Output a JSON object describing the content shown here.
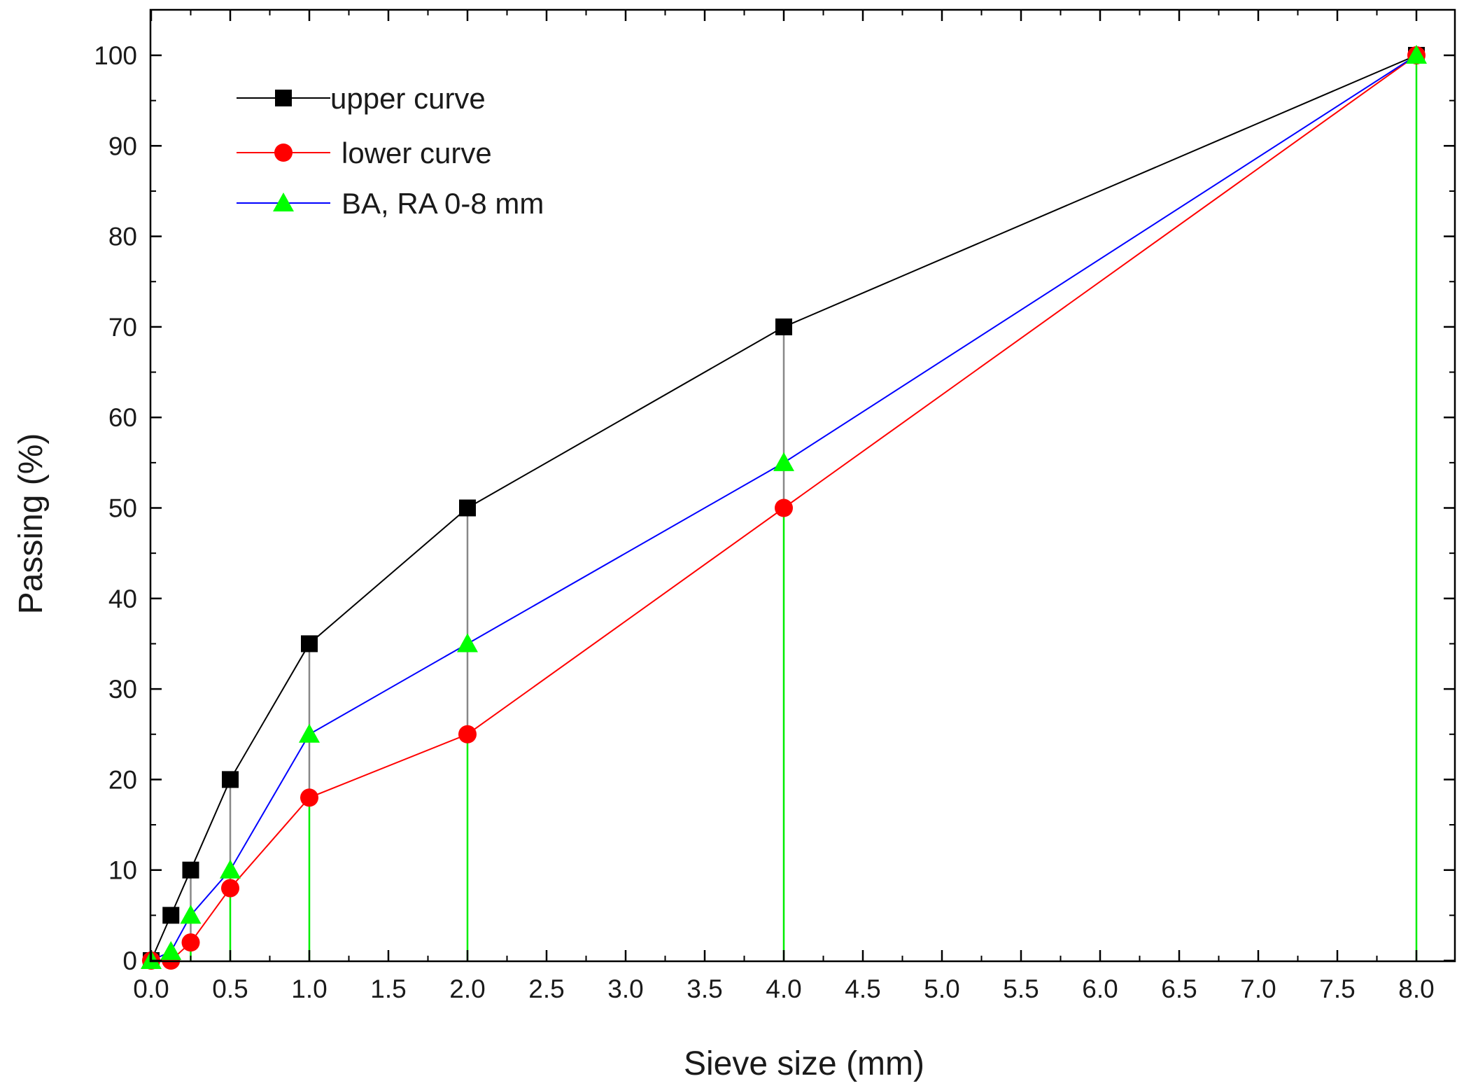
{
  "chart_data": {
    "type": "line",
    "title": "",
    "xlabel": "Sieve size (mm)",
    "ylabel": "Passing (%)",
    "xlim": [
      0,
      8.25
    ],
    "ylim": [
      0,
      104
    ],
    "x_ticks": [
      0,
      0.5,
      1,
      1.5,
      2,
      2.5,
      3,
      3.5,
      4,
      4.5,
      5,
      5.5,
      6,
      6.5,
      7,
      7.5,
      8
    ],
    "x_tick_labels": [
      "0.0",
      "0.5",
      "1.0",
      "1.5",
      "2.0",
      "2.5",
      "3.0",
      "3.5",
      "4.0",
      "4.5",
      "5.0",
      "5.5",
      "6.0",
      "6.5",
      "7.0",
      "7.5",
      "8.0"
    ],
    "y_ticks": [
      0,
      10,
      20,
      30,
      40,
      50,
      60,
      70,
      80,
      90,
      100
    ],
    "y_tick_labels": [
      "0",
      "10",
      "20",
      "30",
      "40",
      "50",
      "60",
      "70",
      "80",
      "90",
      "100"
    ],
    "grid": false,
    "legend_position": "top-left",
    "series": [
      {
        "name": "upper curve",
        "color": "#000000",
        "marker": "square",
        "x": [
          0,
          0.125,
          0.25,
          0.5,
          1,
          2,
          4,
          8
        ],
        "values": [
          0,
          5,
          10,
          20,
          35,
          50,
          70,
          100
        ]
      },
      {
        "name": "lower curve",
        "color": "#ff0000",
        "marker": "circle",
        "x": [
          0,
          0.125,
          0.25,
          0.5,
          1,
          2,
          4,
          8
        ],
        "values": [
          0,
          0,
          2,
          8,
          18,
          25,
          50,
          100
        ]
      },
      {
        "name": "BA, RA 0-8 mm",
        "color": "#0000ff",
        "marker_color": "#00ff00",
        "marker": "triangle",
        "x": [
          0,
          0.125,
          0.25,
          0.5,
          1,
          2,
          4,
          8
        ],
        "values": [
          0,
          1,
          5,
          10,
          25,
          35,
          55,
          100
        ]
      }
    ],
    "drop_lines": {
      "upper_gray": {
        "color": "#888888",
        "x": [
          0.25,
          0.5,
          1,
          2,
          4
        ]
      },
      "lower_green": {
        "color": "#00ee00",
        "x": [
          0.25,
          0.5,
          1,
          2,
          4,
          8
        ]
      }
    }
  }
}
